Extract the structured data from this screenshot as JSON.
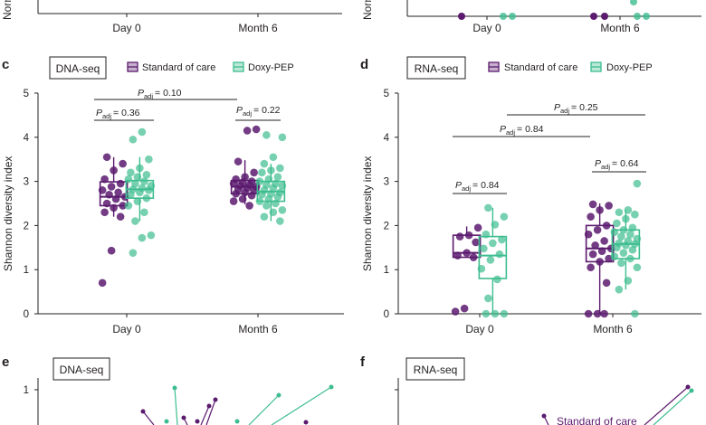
{
  "colors": {
    "soc": "#5b1a6e",
    "doxy": "#3dbd8f",
    "axis": "#231f20"
  },
  "panels": {
    "top": {
      "ylabel_fragment_left": "Norm",
      "ylabel_fragment_right": "Norm",
      "categories": [
        "Day 0",
        "Month 6"
      ]
    },
    "c": {
      "letter": "c",
      "tag": "DNA-seq",
      "legend": [
        "Standard of care",
        "Doxy-PEP"
      ],
      "ylabel": "Shannon diversity index",
      "categories": [
        "Day 0",
        "Month 6"
      ],
      "ylim": [
        0,
        5
      ],
      "yticks": [
        "0",
        "1",
        "2",
        "3",
        "4",
        "5"
      ],
      "comparisons": [
        {
          "label_main": "P",
          "label_sub": "adj",
          "label_value": "= 0.10"
        },
        {
          "label_main": "P",
          "label_sub": "adj",
          "label_value": "= 0.36"
        },
        {
          "label_main": "P",
          "label_sub": "adj",
          "label_value": "= 0.22"
        }
      ]
    },
    "d": {
      "letter": "d",
      "tag": "RNA-seq",
      "legend": [
        "Standard of care",
        "Doxy-PEP"
      ],
      "ylabel": "Shannon diversity index",
      "categories": [
        "Day 0",
        "Month 6"
      ],
      "ylim": [
        0,
        5
      ],
      "yticks": [
        "0",
        "1",
        "2",
        "3",
        "4",
        "5"
      ],
      "comparisons": [
        {
          "label_main": "P",
          "label_sub": "adj",
          "label_value": "= 0.25"
        },
        {
          "label_main": "P",
          "label_sub": "adj",
          "label_value": "= 0.84"
        },
        {
          "label_main": "P",
          "label_sub": "adj",
          "label_value": "= 0.84"
        },
        {
          "label_main": "P",
          "label_sub": "adj",
          "label_value": "= 0.64"
        }
      ]
    },
    "e": {
      "letter": "e",
      "tag": "DNA-seq",
      "ytick": "1"
    },
    "f": {
      "letter": "f",
      "tag": "RNA-seq",
      "annotation": "Standard of care"
    }
  },
  "chart_data": [
    {
      "panel": "c",
      "type": "box",
      "title": "DNA-seq",
      "ylabel": "Shannon diversity index",
      "categories": [
        "Day 0",
        "Month 6"
      ],
      "ylim": [
        0,
        5
      ],
      "series": [
        {
          "name": "Standard of care",
          "box": [
            {
              "q1": 2.45,
              "median": 2.65,
              "q3": 2.99,
              "whisker_low": 2.2,
              "whisker_high": 3.55
            },
            {
              "q1": 2.72,
              "median": 2.88,
              "q3": 3.02,
              "whisker_low": 2.48,
              "whisker_high": 3.48
            }
          ],
          "points": [
            [
              0.7,
              1.43,
              2.2,
              2.3,
              2.4,
              2.45,
              2.5,
              2.6,
              2.65,
              2.7,
              2.75,
              2.8,
              2.88,
              2.95,
              3.05,
              3.25,
              3.4,
              3.55
            ],
            [
              2.45,
              2.55,
              2.6,
              2.68,
              2.72,
              2.75,
              2.8,
              2.82,
              2.85,
              2.88,
              2.9,
              2.92,
              2.95,
              2.98,
              3.0,
              3.05,
              3.1,
              3.2,
              3.45,
              4.15,
              4.18
            ]
          ]
        },
        {
          "name": "Doxy-PEP",
          "box": [
            {
              "q1": 2.62,
              "median": 2.82,
              "q3": 3.02,
              "whisker_low": 2.1,
              "whisker_high": 3.55
            },
            {
              "q1": 2.55,
              "median": 2.77,
              "q3": 3.0,
              "whisker_low": 2.1,
              "whisker_high": 3.4
            }
          ],
          "points": [
            [
              1.38,
              1.72,
              1.78,
              2.1,
              2.3,
              2.45,
              2.55,
              2.62,
              2.7,
              2.75,
              2.8,
              2.82,
              2.85,
              2.9,
              2.95,
              3.0,
              3.05,
              3.1,
              3.15,
              3.2,
              3.3,
              3.5,
              3.95,
              4.12
            ],
            [
              2.1,
              2.2,
              2.3,
              2.35,
              2.45,
              2.5,
              2.55,
              2.6,
              2.65,
              2.7,
              2.72,
              2.75,
              2.8,
              2.85,
              2.9,
              2.92,
              2.95,
              3.0,
              3.05,
              3.1,
              3.2,
              3.25,
              3.3,
              3.4,
              3.55,
              4.0,
              4.05
            ]
          ]
        }
      ]
    },
    {
      "panel": "d",
      "type": "box",
      "title": "RNA-seq",
      "ylabel": "Shannon diversity index",
      "categories": [
        "Day 0",
        "Month 6"
      ],
      "ylim": [
        0,
        5
      ],
      "series": [
        {
          "name": "Standard of care",
          "box": [
            {
              "q1": 1.28,
              "median": 1.38,
              "q3": 1.78,
              "whisker_low": 1.28,
              "whisker_high": 1.98
            },
            {
              "q1": 1.18,
              "median": 1.48,
              "q3": 2.0,
              "whisker_low": 0.0,
              "whisker_high": 2.5
            }
          ],
          "points": [
            [
              0.05,
              0.12,
              1.28,
              1.32,
              1.38,
              1.62,
              1.75,
              1.78,
              1.95
            ],
            [
              0.0,
              0.0,
              0.0,
              0.7,
              1.05,
              1.18,
              1.25,
              1.35,
              1.42,
              1.48,
              1.55,
              1.65,
              1.8,
              1.9,
              2.0,
              2.2,
              2.35,
              2.45,
              2.48
            ]
          ]
        },
        {
          "name": "Doxy-PEP",
          "box": [
            {
              "q1": 0.8,
              "median": 1.32,
              "q3": 1.75,
              "whisker_low": 0.0,
              "whisker_high": 2.4
            },
            {
              "q1": 1.25,
              "median": 1.58,
              "q3": 1.9,
              "whisker_low": 0.55,
              "whisker_high": 2.35
            }
          ],
          "points": [
            [
              0.0,
              0.0,
              0.0,
              0.35,
              0.78,
              1.02,
              1.22,
              1.35,
              1.48,
              1.6,
              1.68,
              1.8,
              2.02,
              2.2,
              2.4
            ],
            [
              0.0,
              0.55,
              0.75,
              1.05,
              1.15,
              1.25,
              1.3,
              1.38,
              1.45,
              1.5,
              1.55,
              1.58,
              1.6,
              1.65,
              1.7,
              1.75,
              1.8,
              1.85,
              1.9,
              1.95,
              2.05,
              2.15,
              2.25,
              2.3,
              2.35,
              2.95
            ]
          ]
        }
      ]
    }
  ]
}
